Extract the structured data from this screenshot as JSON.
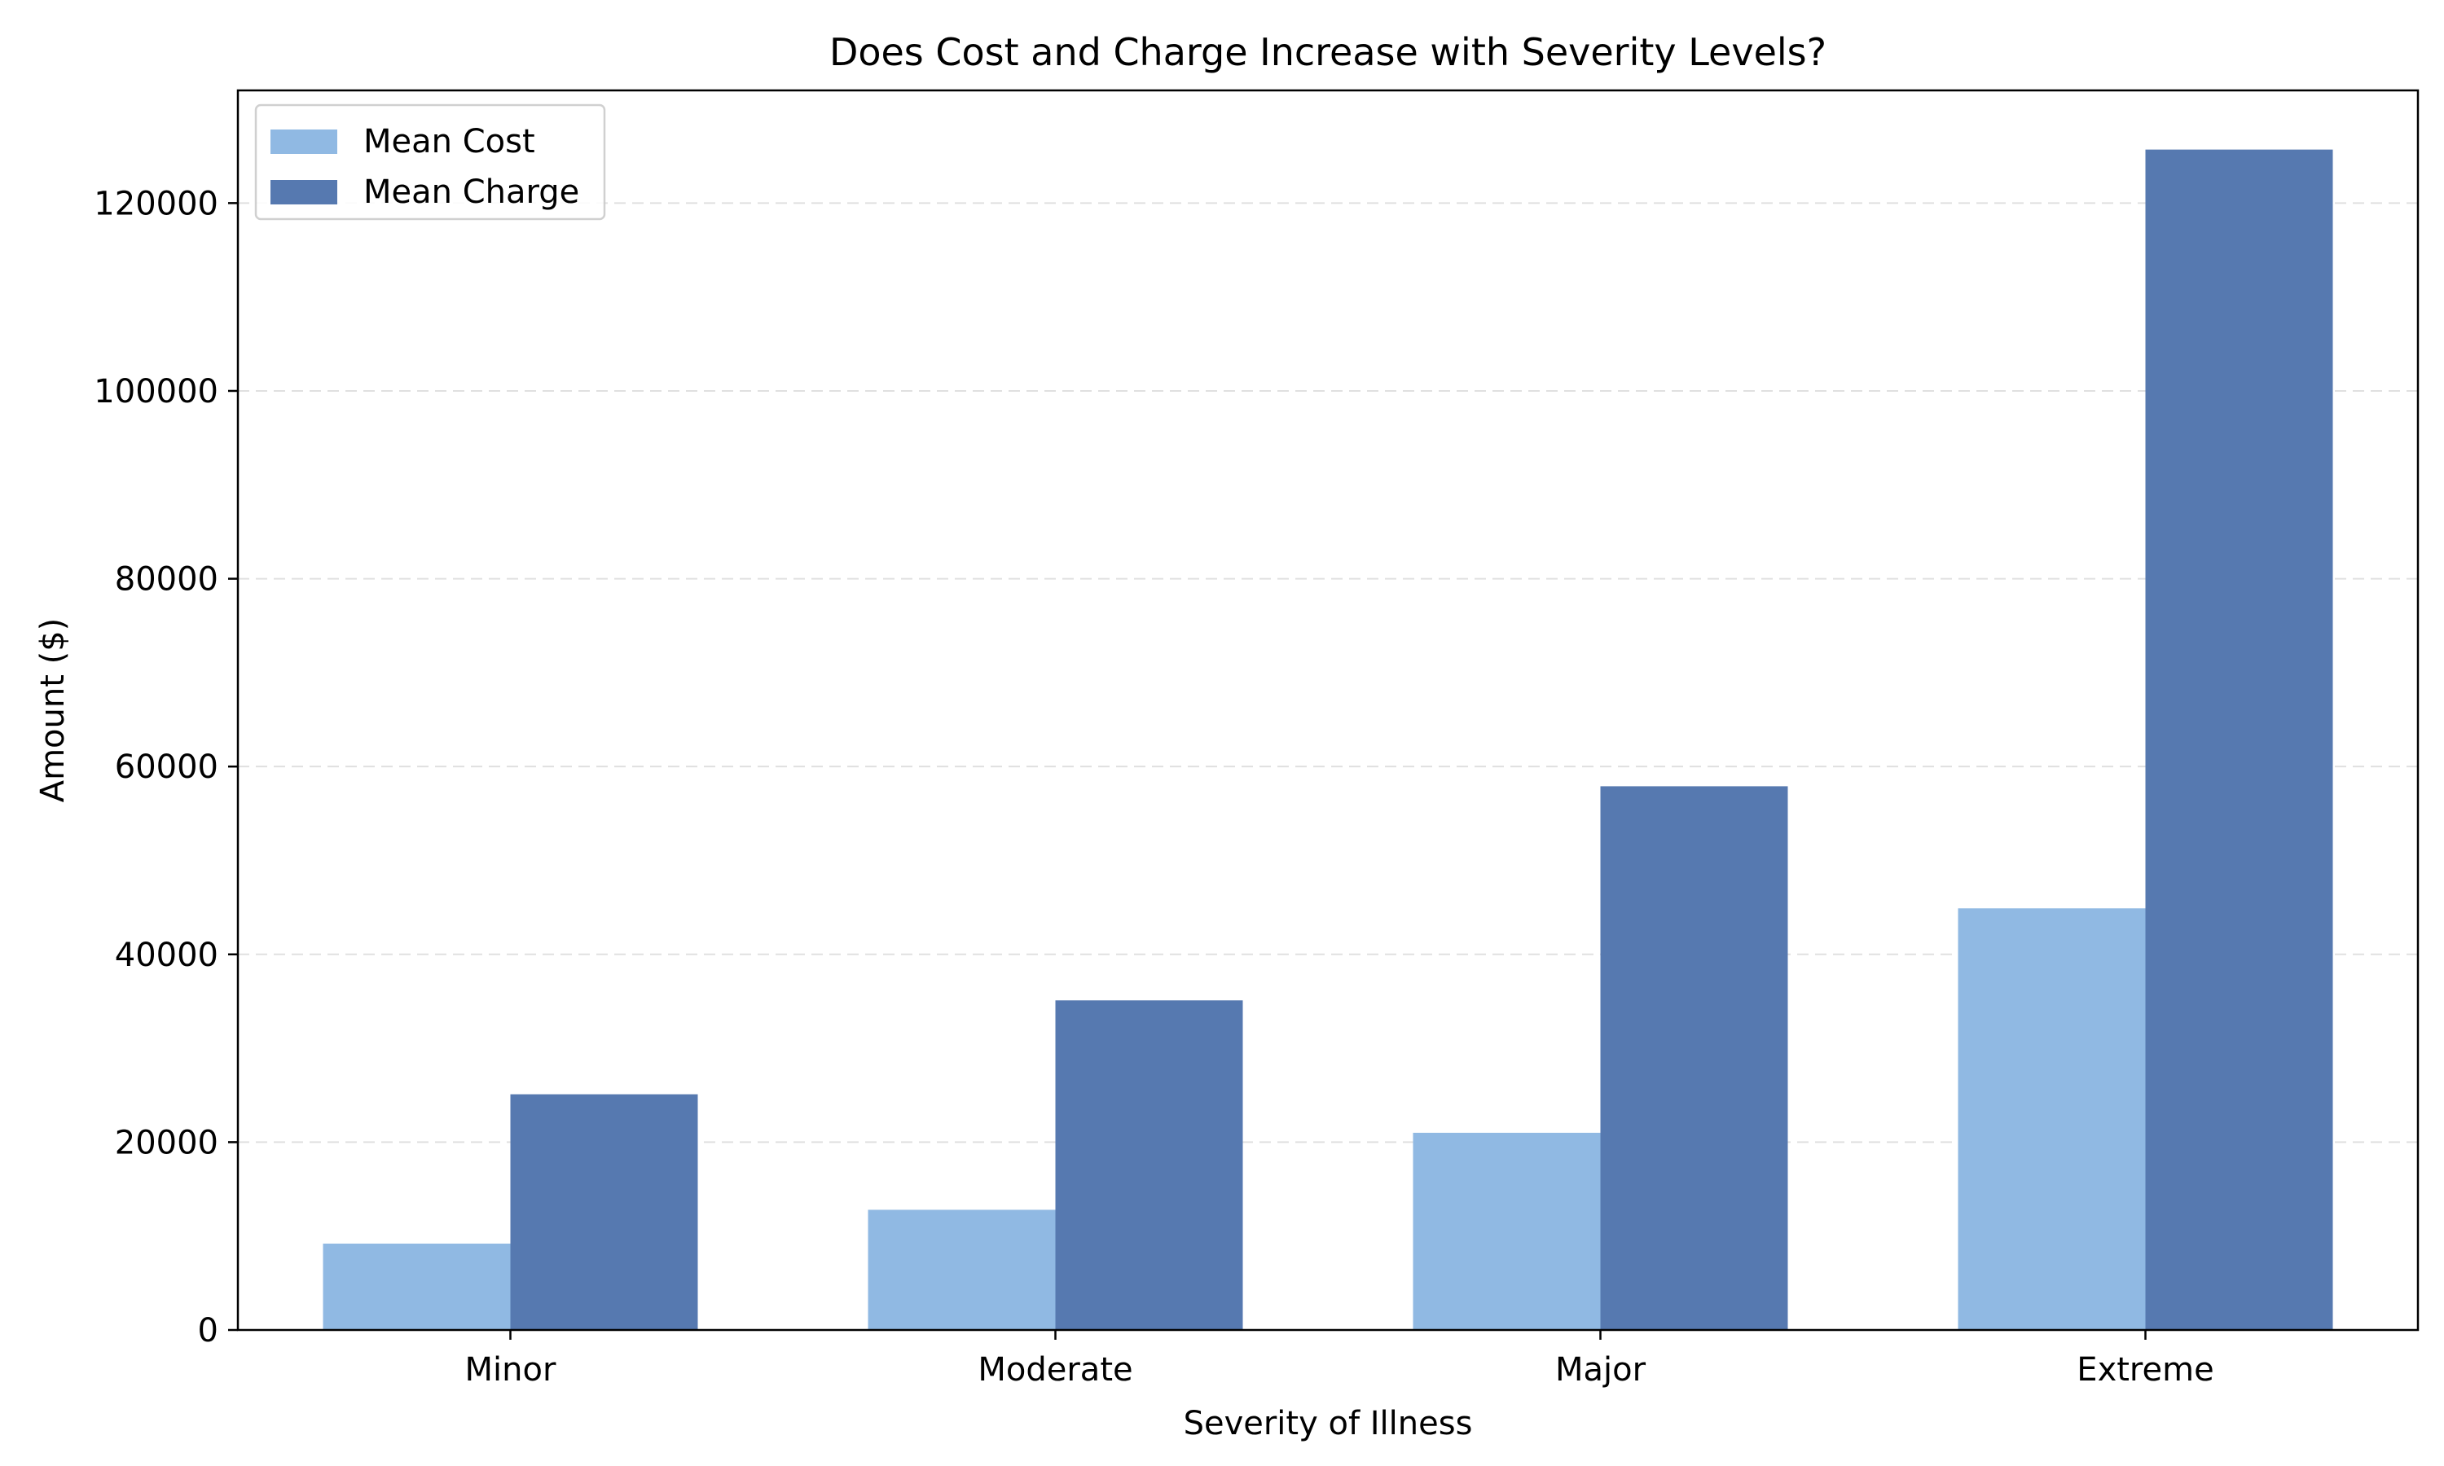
{
  "chart_data": {
    "type": "bar",
    "title": "Does Cost and Charge Increase with Severity Levels?",
    "xlabel": "Severity of Illness",
    "ylabel": "Amount ($)",
    "categories": [
      "Minor",
      "Moderate",
      "Major",
      "Extreme"
    ],
    "series": [
      {
        "name": "Mean Cost",
        "color": "#90b9e3",
        "values": [
          9200,
          12800,
          21000,
          44900
        ]
      },
      {
        "name": "Mean Charge",
        "color": "#5679b0",
        "values": [
          25100,
          35100,
          57900,
          125700
        ]
      }
    ],
    "ylim": [
      0,
      132000
    ],
    "yticks": [
      0,
      20000,
      40000,
      60000,
      80000,
      100000,
      120000
    ],
    "ytick_labels": [
      "0",
      "20000",
      "40000",
      "60000",
      "80000",
      "100000",
      "120000"
    ],
    "grid": "y-dashed",
    "legend_position": "top-left"
  }
}
